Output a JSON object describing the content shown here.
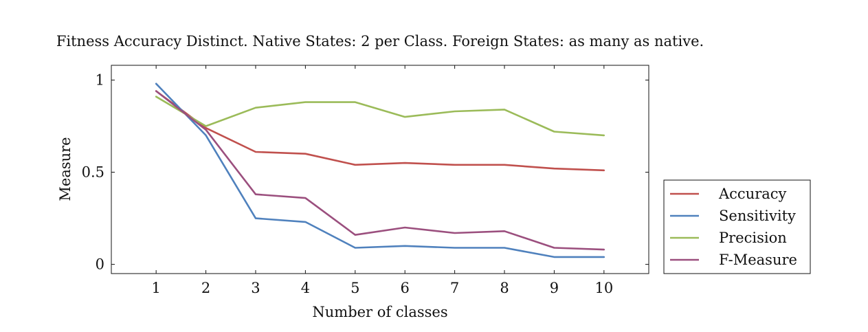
{
  "chart_data": {
    "type": "line",
    "title": "Fitness Accuracy Distinct. Native States: 2 per Class. Foreign States: as many as native.",
    "xlabel": "Number of classes",
    "ylabel": "Measure",
    "x": [
      1,
      2,
      3,
      4,
      5,
      6,
      7,
      8,
      9,
      10
    ],
    "x_tick_labels": [
      "1",
      "2",
      "3",
      "4",
      "5",
      "6",
      "7",
      "8",
      "9",
      "10"
    ],
    "xlim": [
      0.1,
      10.9
    ],
    "ylim": [
      -0.05,
      1.08
    ],
    "y_ticks": [
      0,
      0.5,
      1
    ],
    "y_tick_labels": [
      "0",
      "0.5",
      "1"
    ],
    "grid": false,
    "legend_position": "outside-right-bottom",
    "series": [
      {
        "name": "Accuracy",
        "color": "#c0504d",
        "values": [
          0.94,
          0.74,
          0.61,
          0.6,
          0.54,
          0.55,
          0.54,
          0.54,
          0.52,
          0.51
        ]
      },
      {
        "name": "Sensitivity",
        "color": "#4f81bd",
        "values": [
          0.98,
          0.7,
          0.25,
          0.23,
          0.09,
          0.1,
          0.09,
          0.09,
          0.04,
          0.04
        ]
      },
      {
        "name": "Precision",
        "color": "#9bbb59",
        "values": [
          0.91,
          0.75,
          0.85,
          0.88,
          0.88,
          0.8,
          0.83,
          0.84,
          0.72,
          0.7
        ]
      },
      {
        "name": "F-Measure",
        "color": "#9b4f7e",
        "values": [
          0.94,
          0.73,
          0.38,
          0.36,
          0.16,
          0.2,
          0.17,
          0.18,
          0.09,
          0.08
        ]
      }
    ]
  }
}
